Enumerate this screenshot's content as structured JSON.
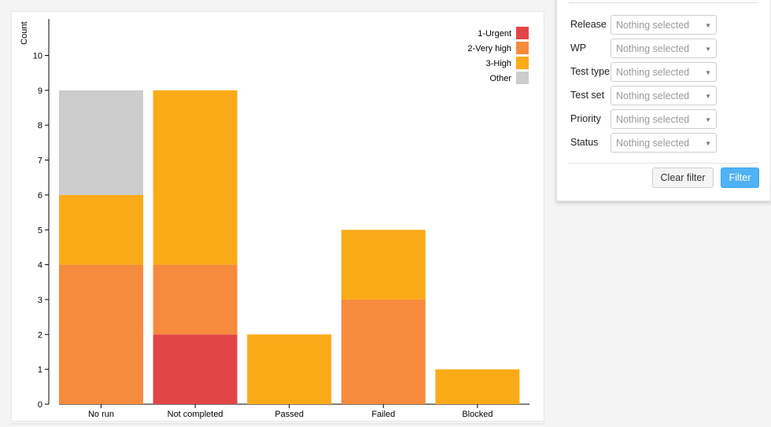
{
  "chart_data": {
    "type": "bar",
    "stacked": true,
    "ylabel": "Count",
    "xlabel": "",
    "ylim": [
      0,
      11
    ],
    "yticks": [
      0,
      1,
      2,
      3,
      4,
      5,
      6,
      7,
      8,
      9,
      10
    ],
    "categories": [
      "No run",
      "Not completed",
      "Passed",
      "Failed",
      "Blocked"
    ],
    "series": [
      {
        "name": "1-Urgent",
        "color": "#e14545",
        "values": [
          0,
          2,
          0,
          0,
          0
        ]
      },
      {
        "name": "2-Very high",
        "color": "#f68b3d",
        "values": [
          4,
          2,
          0,
          3,
          0
        ]
      },
      {
        "name": "3-High",
        "color": "#fbab18",
        "values": [
          2,
          5,
          2,
          2,
          1
        ]
      },
      {
        "name": "Other",
        "color": "#cccccc",
        "values": [
          3,
          0,
          0,
          0,
          0
        ]
      }
    ],
    "legend_position": "top-right",
    "grid": false
  },
  "filters": {
    "rows": [
      {
        "label": "Release",
        "value": "Nothing selected"
      },
      {
        "label": "WP",
        "value": "Nothing selected"
      },
      {
        "label": "Test type",
        "value": "Nothing selected"
      },
      {
        "label": "Test set",
        "value": "Nothing selected"
      },
      {
        "label": "Priority",
        "value": "Nothing selected"
      },
      {
        "label": "Status",
        "value": "Nothing selected"
      }
    ],
    "clear_label": "Clear filter",
    "filter_label": "Filter"
  },
  "icons": {
    "dropdown": "caret-down-icon"
  }
}
